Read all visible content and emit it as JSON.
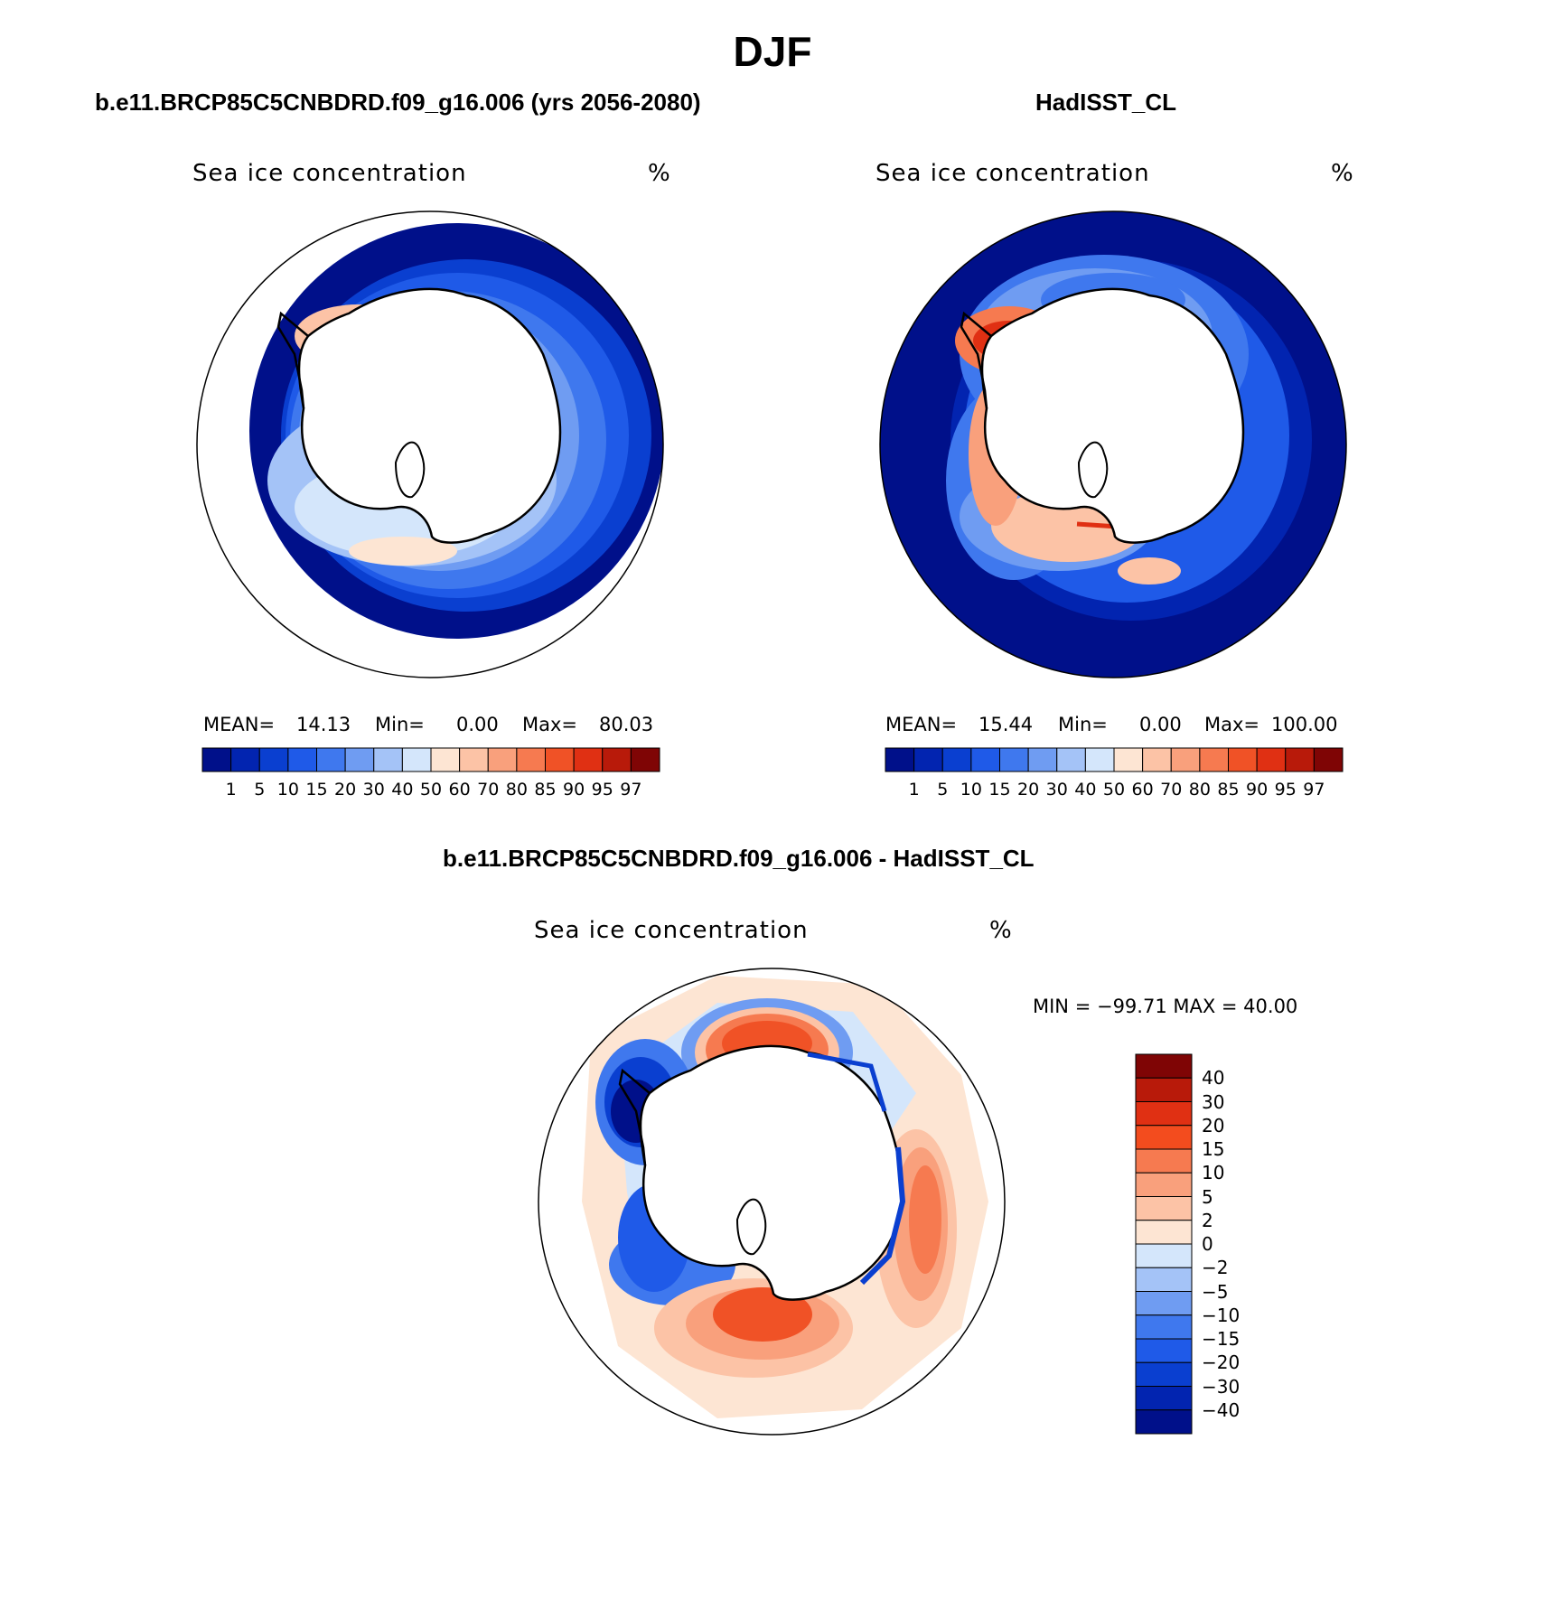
{
  "title": "DJF",
  "panels": [
    {
      "id": "model",
      "subtitle": "b.e11.BRCP85C5CNBDRD.f09_g16.006 (yrs 2056-2080)",
      "variable_label": "Sea ice concentration",
      "units": "%",
      "stats": {
        "mean_label": "MEAN=",
        "mean": "14.13",
        "min_label": "Min=",
        "min": "0.00",
        "max_label": "Max=",
        "max": "80.03"
      }
    },
    {
      "id": "obs",
      "subtitle": "HadISST_CL",
      "variable_label": "Sea ice concentration",
      "units": "%",
      "stats": {
        "mean_label": "MEAN=",
        "mean": "15.44",
        "min_label": "Min=",
        "min": "0.00",
        "max_label": "Max=",
        "max": "100.00"
      }
    },
    {
      "id": "diff",
      "subtitle": "b.e11.BRCP85C5CNBDRD.f09_g16.006 - HadISST_CL",
      "variable_label": "Sea ice concentration",
      "units": "%",
      "minmax": "MIN = −99.71  MAX =   40.00"
    }
  ],
  "colorbar_horizontal": {
    "colors": [
      "#00108a",
      "#0224b0",
      "#0a3fd0",
      "#1f5ae8",
      "#3f78ee",
      "#6f9cf2",
      "#a4c3f7",
      "#d4e6fb",
      "#fde5d3",
      "#fcc3a6",
      "#f9a07c",
      "#f67a50",
      "#f05226",
      "#e03013",
      "#b81a0a",
      "#7f0505"
    ],
    "labels": [
      "1",
      "5",
      "10",
      "15",
      "20",
      "30",
      "40",
      "50",
      "60",
      "70",
      "80",
      "85",
      "90",
      "95",
      "97"
    ]
  },
  "colorbar_vertical": {
    "colors": [
      "#7f0505",
      "#b81a0a",
      "#e03013",
      "#f34c1e",
      "#f67a50",
      "#f9a07c",
      "#fcc3a6",
      "#fde5d3",
      "#d4e6fb",
      "#a4c3f7",
      "#6f9cf2",
      "#3f78ee",
      "#1f5ae8",
      "#0a3fd0",
      "#0224b0",
      "#00108a"
    ],
    "labels": [
      "40",
      "30",
      "20",
      "15",
      "10",
      "5",
      "2",
      "0",
      "−2",
      "−5",
      "−10",
      "−15",
      "−20",
      "−30",
      "−40"
    ]
  }
}
